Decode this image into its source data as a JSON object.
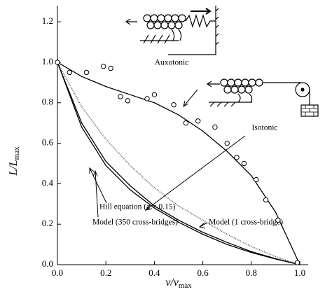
{
  "chart_data": {
    "type": "line",
    "x_label": "v/v",
    "x_label_sub": "max",
    "y_label": "L/L",
    "y_label_sub": "max",
    "xlim": [
      0,
      1.0
    ],
    "xticks": [
      {
        "value": 0,
        "label": "0.0"
      },
      0.2,
      0.4,
      0.6,
      0.8,
      {
        "value": 1,
        "label": "1.0"
      }
    ],
    "ylim": [
      0,
      1.28
    ],
    "yticks": [
      {
        "value": 0,
        "label": "0.0"
      },
      0.2,
      0.4,
      0.6,
      0.8,
      {
        "value": 1,
        "label": "1.0"
      },
      1.2
    ],
    "x": [
      0,
      0.1,
      0.2,
      0.3,
      0.4,
      0.5,
      0.6,
      0.7,
      0.8,
      0.9,
      1.0
    ],
    "series": [
      {
        "color": "#000000",
        "style": "solid",
        "values": [
          1.0,
          0.93,
          0.88,
          0.84,
          0.8,
          0.74,
          0.66,
          0.56,
          0.44,
          0.26,
          0.0
        ]
      },
      {
        "color": "#555555",
        "style": "dotted",
        "values": [
          1.0,
          0.78,
          0.62,
          0.49,
          0.38,
          0.29,
          0.22,
          0.15,
          0.09,
          0.04,
          0.0
        ]
      },
      {
        "color": "#000000",
        "style": "solid",
        "values": [
          1.0,
          0.7,
          0.51,
          0.39,
          0.29,
          0.22,
          0.16,
          0.11,
          0.065,
          0.03,
          0.0
        ]
      },
      {
        "color": "#000000",
        "style": "solid",
        "values": [
          1.0,
          0.68,
          0.49,
          0.37,
          0.28,
          0.21,
          0.15,
          0.1,
          0.06,
          0.028,
          0.0
        ]
      }
    ],
    "points": {
      "x": [
        0,
        0.05,
        0.12,
        0.19,
        0.22,
        0.26,
        0.29,
        0.37,
        0.4,
        0.48,
        0.53,
        0.58,
        0.65,
        0.7,
        0.74,
        0.77,
        0.82,
        0.86,
        0.91,
        0.99
      ],
      "y": [
        1.0,
        0.95,
        0.95,
        0.98,
        0.97,
        0.83,
        0.81,
        0.82,
        0.84,
        0.79,
        0.7,
        0.71,
        0.68,
        0.6,
        0.53,
        0.5,
        0.42,
        0.32,
        0.22,
        0.01
      ]
    },
    "annotations": {
      "auxotonic": "Auxotonic",
      "isotonic": "Isotonic",
      "hill": "Hill equation (a = 0.15)",
      "model1": "Model (1 cross-bridge)",
      "model350": "Model (350 cross-bridges)"
    }
  }
}
